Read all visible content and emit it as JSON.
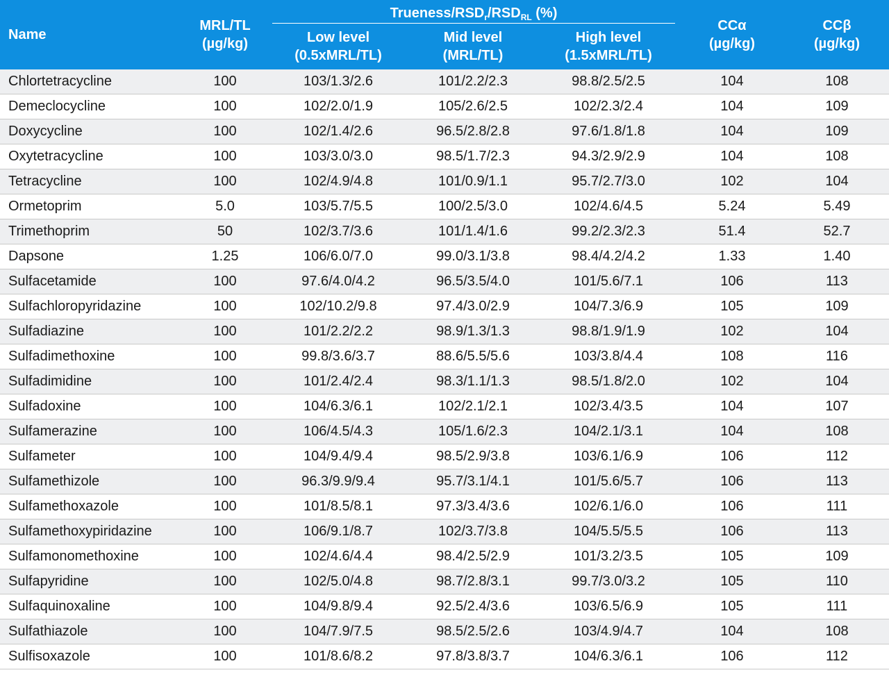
{
  "headers": {
    "name": "Name",
    "mrl_line1": "MRL/TL",
    "mrl_line2": "(µg/kg)",
    "group_prefix": "Trueness/RSD",
    "group_sub_r": "r",
    "group_mid": "/RSD",
    "group_sub_rl": "RL",
    "group_suffix": " (%)",
    "low_line1": "Low level",
    "low_line2": "(0.5xMRL/TL)",
    "mid_line1": "Mid level",
    "mid_line2": "(MRL/TL)",
    "high_line1": "High level",
    "high_line2": "(1.5xMRL/TL)",
    "cca_line1": "CCα",
    "cca_line2": "(µg/kg)",
    "ccb_line1": "CCβ",
    "ccb_line2": "(µg/kg)"
  },
  "rows": [
    [
      "Chlortetracycline",
      "100",
      "103/1.3/2.6",
      "101/2.2/2.3",
      "98.8/2.5/2.5",
      "104",
      "108"
    ],
    [
      "Demeclocycline",
      "100",
      "102/2.0/1.9",
      "105/2.6/2.5",
      "102/2.3/2.4",
      "104",
      "109"
    ],
    [
      "Doxycycline",
      "100",
      "102/1.4/2.6",
      "96.5/2.8/2.8",
      "97.6/1.8/1.8",
      "104",
      "109"
    ],
    [
      "Oxytetracycline",
      "100",
      "103/3.0/3.0",
      "98.5/1.7/2.3",
      "94.3/2.9/2.9",
      "104",
      "108"
    ],
    [
      "Tetracycline",
      "100",
      "102/4.9/4.8",
      "101/0.9/1.1",
      "95.7/2.7/3.0",
      "102",
      "104"
    ],
    [
      "Ormetoprim",
      "5.0",
      "103/5.7/5.5",
      "100/2.5/3.0",
      "102/4.6/4.5",
      "5.24",
      "5.49"
    ],
    [
      "Trimethoprim",
      "50",
      "102/3.7/3.6",
      "101/1.4/1.6",
      "99.2/2.3/2.3",
      "51.4",
      "52.7"
    ],
    [
      "Dapsone",
      "1.25",
      "106/6.0/7.0",
      "99.0/3.1/3.8",
      "98.4/4.2/4.2",
      "1.33",
      "1.40"
    ],
    [
      "Sulfacetamide",
      "100",
      "97.6/4.0/4.2",
      "96.5/3.5/4.0",
      "101/5.6/7.1",
      "106",
      "113"
    ],
    [
      "Sulfachloropyridazine",
      "100",
      "102/10.2/9.8",
      "97.4/3.0/2.9",
      "104/7.3/6.9",
      "105",
      "109"
    ],
    [
      "Sulfadiazine",
      "100",
      "101/2.2/2.2",
      "98.9/1.3/1.3",
      "98.8/1.9/1.9",
      "102",
      "104"
    ],
    [
      "Sulfadimethoxine",
      "100",
      "99.8/3.6/3.7",
      "88.6/5.5/5.6",
      "103/3.8/4.4",
      "108",
      "116"
    ],
    [
      "Sulfadimidine",
      "100",
      "101/2.4/2.4",
      "98.3/1.1/1.3",
      "98.5/1.8/2.0",
      "102",
      "104"
    ],
    [
      "Sulfadoxine",
      "100",
      "104/6.3/6.1",
      "102/2.1/2.1",
      "102/3.4/3.5",
      "104",
      "107"
    ],
    [
      "Sulfamerazine",
      "100",
      "106/4.5/4.3",
      "105/1.6/2.3",
      "104/2.1/3.1",
      "104",
      "108"
    ],
    [
      "Sulfameter",
      "100",
      "104/9.4/9.4",
      "98.5/2.9/3.8",
      "103/6.1/6.9",
      "106",
      "112"
    ],
    [
      "Sulfamethizole",
      "100",
      "96.3/9.9/9.4",
      "95.7/3.1/4.1",
      "101/5.6/5.7",
      "106",
      "113"
    ],
    [
      "Sulfamethoxazole",
      "100",
      "101/8.5/8.1",
      "97.3/3.4/3.6",
      "102/6.1/6.0",
      "106",
      "111"
    ],
    [
      "Sulfamethoxypiridazine",
      "100",
      "106/9.1/8.7",
      "102/3.7/3.8",
      "104/5.5/5.5",
      "106",
      "113"
    ],
    [
      "Sulfamonomethoxine",
      "100",
      "102/4.6/4.4",
      "98.4/2.5/2.9",
      "101/3.2/3.5",
      "105",
      "109"
    ],
    [
      "Sulfapyridine",
      "100",
      "102/5.0/4.8",
      "98.7/2.8/3.1",
      "99.7/3.0/3.2",
      "105",
      "110"
    ],
    [
      "Sulfaquinoxaline",
      "100",
      "104/9.8/9.4",
      "92.5/2.4/3.6",
      "103/6.5/6.9",
      "105",
      "111"
    ],
    [
      "Sulfathiazole",
      "100",
      "104/7.9/7.5",
      "98.5/2.5/2.6",
      "103/4.9/4.7",
      "104",
      "108"
    ],
    [
      "Sulfisoxazole",
      "100",
      "101/8.6/8.2",
      "97.8/3.8/3.7",
      "104/6.3/6.1",
      "106",
      "112"
    ]
  ]
}
